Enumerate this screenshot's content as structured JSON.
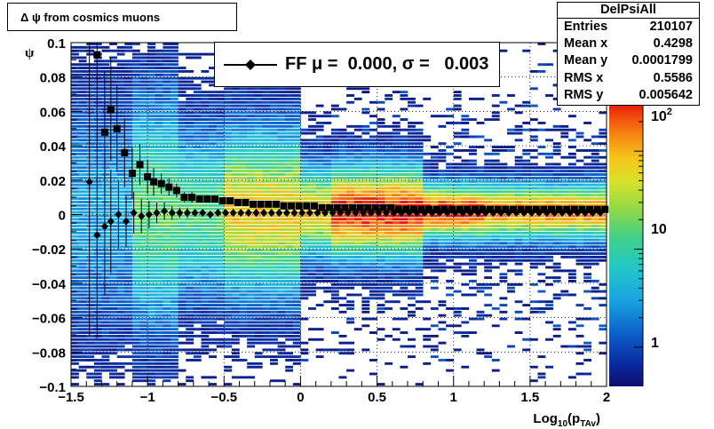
{
  "title": "Δ ψ from cosmics muons",
  "stats": {
    "name": "DelPsiAll",
    "rows": [
      {
        "label": "Entries",
        "value": "210107"
      },
      {
        "label": "Mean x",
        "value": "0.4298"
      },
      {
        "label": "Mean y",
        "value": "0.0001799"
      },
      {
        "label": "RMS x",
        "value": "0.5586"
      },
      {
        "label": "RMS y",
        "value": "0.005642"
      }
    ]
  },
  "legend": {
    "label": "FF μ =  0.000, σ =   0.003"
  },
  "chart_data": {
    "type": "heatmap",
    "xlabel": "Log10(pTAv)",
    "ylabel": "ψ",
    "xlim": [
      -1.5,
      2
    ],
    "ylim": [
      -0.1,
      0.1
    ],
    "x_ticks": [
      "−1.5",
      "−1",
      "−0.5",
      "0",
      "0.5",
      "1",
      "1.5",
      "2"
    ],
    "y_ticks": [
      "−0.1",
      "−0.08",
      "−0.06",
      "−0.04",
      "−0.02",
      "0",
      "0.02",
      "0.04",
      "0.06",
      "0.08",
      "0.1"
    ],
    "z_scale": "log",
    "z_ticks": [
      "1",
      "10",
      "10^2"
    ],
    "grid": true,
    "series": [
      {
        "marker": "square",
        "x": [
          -1.33,
          -1.28,
          -1.24,
          -1.2,
          -1.15,
          -1.1,
          -1.05,
          -1.0,
          -0.96,
          -0.91,
          -0.86,
          -0.81,
          -0.76,
          -0.71,
          -0.66,
          -0.61,
          -0.56,
          -0.51,
          -0.46,
          -0.41,
          -0.36,
          -0.31,
          -0.26,
          -0.21,
          -0.16,
          -0.11,
          -0.06,
          -0.01,
          0.04,
          0.09,
          0.14,
          0.19,
          0.24,
          0.29,
          0.34,
          0.39,
          0.44,
          0.49,
          0.54,
          0.59,
          0.64,
          0.69,
          0.74,
          0.79,
          0.84,
          0.89,
          0.94,
          0.99,
          1.04,
          1.09,
          1.14,
          1.19,
          1.24,
          1.29,
          1.34,
          1.39,
          1.44,
          1.49,
          1.54,
          1.59,
          1.64,
          1.69,
          1.74,
          1.79,
          1.84,
          1.89,
          1.94,
          1.99
        ],
        "y": [
          0.093,
          0.048,
          0.061,
          0.05,
          0.036,
          0.024,
          0.029,
          0.022,
          0.019,
          0.018,
          0.016,
          0.014,
          0.01,
          0.01,
          0.009,
          0.009,
          0.009,
          0.008,
          0.008,
          0.007,
          0.007,
          0.006,
          0.006,
          0.006,
          0.006,
          0.005,
          0.005,
          0.005,
          0.005,
          0.005,
          0.004,
          0.004,
          0.004,
          0.004,
          0.004,
          0.004,
          0.004,
          0.004,
          0.004,
          0.004,
          0.003,
          0.003,
          0.003,
          0.003,
          0.003,
          0.003,
          0.003,
          0.003,
          0.003,
          0.003,
          0.003,
          0.003,
          0.003,
          0.003,
          0.003,
          0.003,
          0.003,
          0.003,
          0.003,
          0.003,
          0.003,
          0.003,
          0.003,
          0.003,
          0.003,
          0.003,
          0.003,
          0.003
        ],
        "y_err": [
          0.05,
          0.035,
          0.03,
          0.025,
          0.02,
          0.015,
          0.012,
          0.01,
          0.008,
          0.006,
          0.005,
          0.004,
          0.003,
          0.003,
          0.002,
          0.002,
          0.002,
          0.002,
          0.001,
          0.001,
          0.001,
          0.001,
          0.001,
          0.001,
          0.001,
          0.001,
          0.001,
          0.001,
          0.001,
          0.001,
          0.001,
          0.001,
          0.001,
          0.001,
          0.001,
          0.001,
          0.001,
          0.001,
          0.001,
          0.001,
          0.001,
          0.001,
          0.001,
          0.001,
          0.001,
          0.001,
          0.001,
          0.001,
          0.001,
          0.001,
          0.001,
          0.001,
          0.001,
          0.001,
          0.001,
          0.001,
          0.001,
          0.001,
          0.001,
          0.001,
          0.001,
          0.001,
          0.001,
          0.001,
          0.001,
          0.001,
          0.001,
          0.001
        ]
      },
      {
        "name": "FF",
        "marker": "diamond",
        "x": [
          -1.38,
          -1.33,
          -1.28,
          -1.24,
          -1.19,
          -1.14,
          -1.09,
          -1.04,
          -0.99,
          -0.94,
          -0.89,
          -0.84,
          -0.79,
          -0.74,
          -0.69,
          -0.64,
          -0.59,
          -0.54,
          -0.49,
          -0.44,
          -0.39,
          -0.34,
          -0.29,
          -0.24,
          -0.19,
          -0.14,
          -0.09,
          -0.04,
          0.01,
          0.06,
          0.11,
          0.16,
          0.21,
          0.26,
          0.31,
          0.36,
          0.41,
          0.46,
          0.51,
          0.56,
          0.61,
          0.66,
          0.71,
          0.76,
          0.81,
          0.86,
          0.91,
          0.96,
          1.01,
          1.06,
          1.11,
          1.16,
          1.21,
          1.26,
          1.31,
          1.36,
          1.41,
          1.46,
          1.51,
          1.56,
          1.61,
          1.66,
          1.71,
          1.76,
          1.81,
          1.86,
          1.91,
          1.96
        ],
        "y": [
          0.019,
          -0.012,
          -0.007,
          -0.004,
          0.0,
          -0.004,
          0.001,
          -0.001,
          0.0,
          0.001,
          0.002,
          0.001,
          0.001,
          0.001,
          0.001,
          0.001,
          0.0,
          0.001,
          0.001,
          0.001,
          0.001,
          0.001,
          0.001,
          0.001,
          0.001,
          0.001,
          0.001,
          0.001,
          0.001,
          0.001,
          0.001,
          0.001,
          0.001,
          0.001,
          0.001,
          0.001,
          0.001,
          0.001,
          0.001,
          0.001,
          0.001,
          0.001,
          0.001,
          0.001,
          0.001,
          0.001,
          0.001,
          0.001,
          0.001,
          0.001,
          0.001,
          0.001,
          0.001,
          0.001,
          0.001,
          0.001,
          0.001,
          0.001,
          0.001,
          0.001,
          0.001,
          0.001,
          0.001,
          0.001,
          0.001,
          0.001,
          0.001,
          0.001
        ],
        "y_err": [
          0.09,
          0.06,
          0.04,
          0.03,
          0.02,
          0.015,
          0.012,
          0.01,
          0.008,
          0.006,
          0.005,
          0.004,
          0.003,
          0.003,
          0.002,
          0.002,
          0.002,
          0.002,
          0.001,
          0.001,
          0.001,
          0.001,
          0.001,
          0.001,
          0.001,
          0.001,
          0.001,
          0.001,
          0.001,
          0.001,
          0.001,
          0.001,
          0.001,
          0.001,
          0.001,
          0.001,
          0.001,
          0.001,
          0.001,
          0.001,
          0.001,
          0.001,
          0.001,
          0.001,
          0.001,
          0.001,
          0.001,
          0.001,
          0.001,
          0.001,
          0.001,
          0.001,
          0.001,
          0.001,
          0.001,
          0.001,
          0.001,
          0.001,
          0.001,
          0.001,
          0.001,
          0.001,
          0.001,
          0.001,
          0.001,
          0.001,
          0.001,
          0.001
        ]
      }
    ]
  }
}
